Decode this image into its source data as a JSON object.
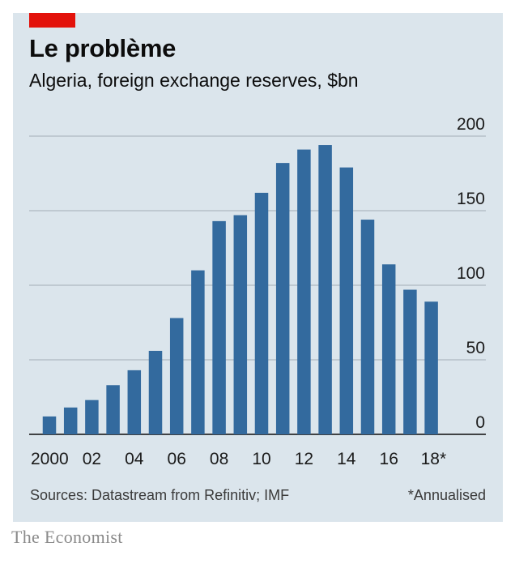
{
  "header": {
    "title": "Le problème",
    "subtitle": "Algeria, foreign exchange reserves, $bn"
  },
  "footer": {
    "sources": "Sources: Datastream from Refinitiv; IMF",
    "note": "*Annualised"
  },
  "brand": "The Economist",
  "colors": {
    "bar": "#336a9e",
    "panel": "#dbe5ec",
    "accent": "#e3120b"
  },
  "chart_data": {
    "type": "bar",
    "title": "Le problème",
    "subtitle": "Algeria, foreign exchange reserves, $bn",
    "xlabel": "",
    "ylabel": "$bn",
    "ylim": [
      0,
      200
    ],
    "grid": true,
    "y_axis_side": "right",
    "y_ticks": [
      "0",
      "50",
      "100",
      "150",
      "200"
    ],
    "categories": [
      "2000",
      "2001",
      "2002",
      "2003",
      "2004",
      "2005",
      "2006",
      "2007",
      "2008",
      "2009",
      "2010",
      "2011",
      "2012",
      "2013",
      "2014",
      "2015",
      "2016",
      "2017",
      "2018"
    ],
    "values": [
      12,
      18,
      23,
      33,
      43,
      56,
      78,
      110,
      143,
      147,
      162,
      182,
      191,
      194,
      179,
      144,
      114,
      97,
      89
    ],
    "x_tick_labels": [
      "2000",
      "02",
      "04",
      "06",
      "08",
      "10",
      "12",
      "14",
      "16",
      "18*"
    ]
  }
}
